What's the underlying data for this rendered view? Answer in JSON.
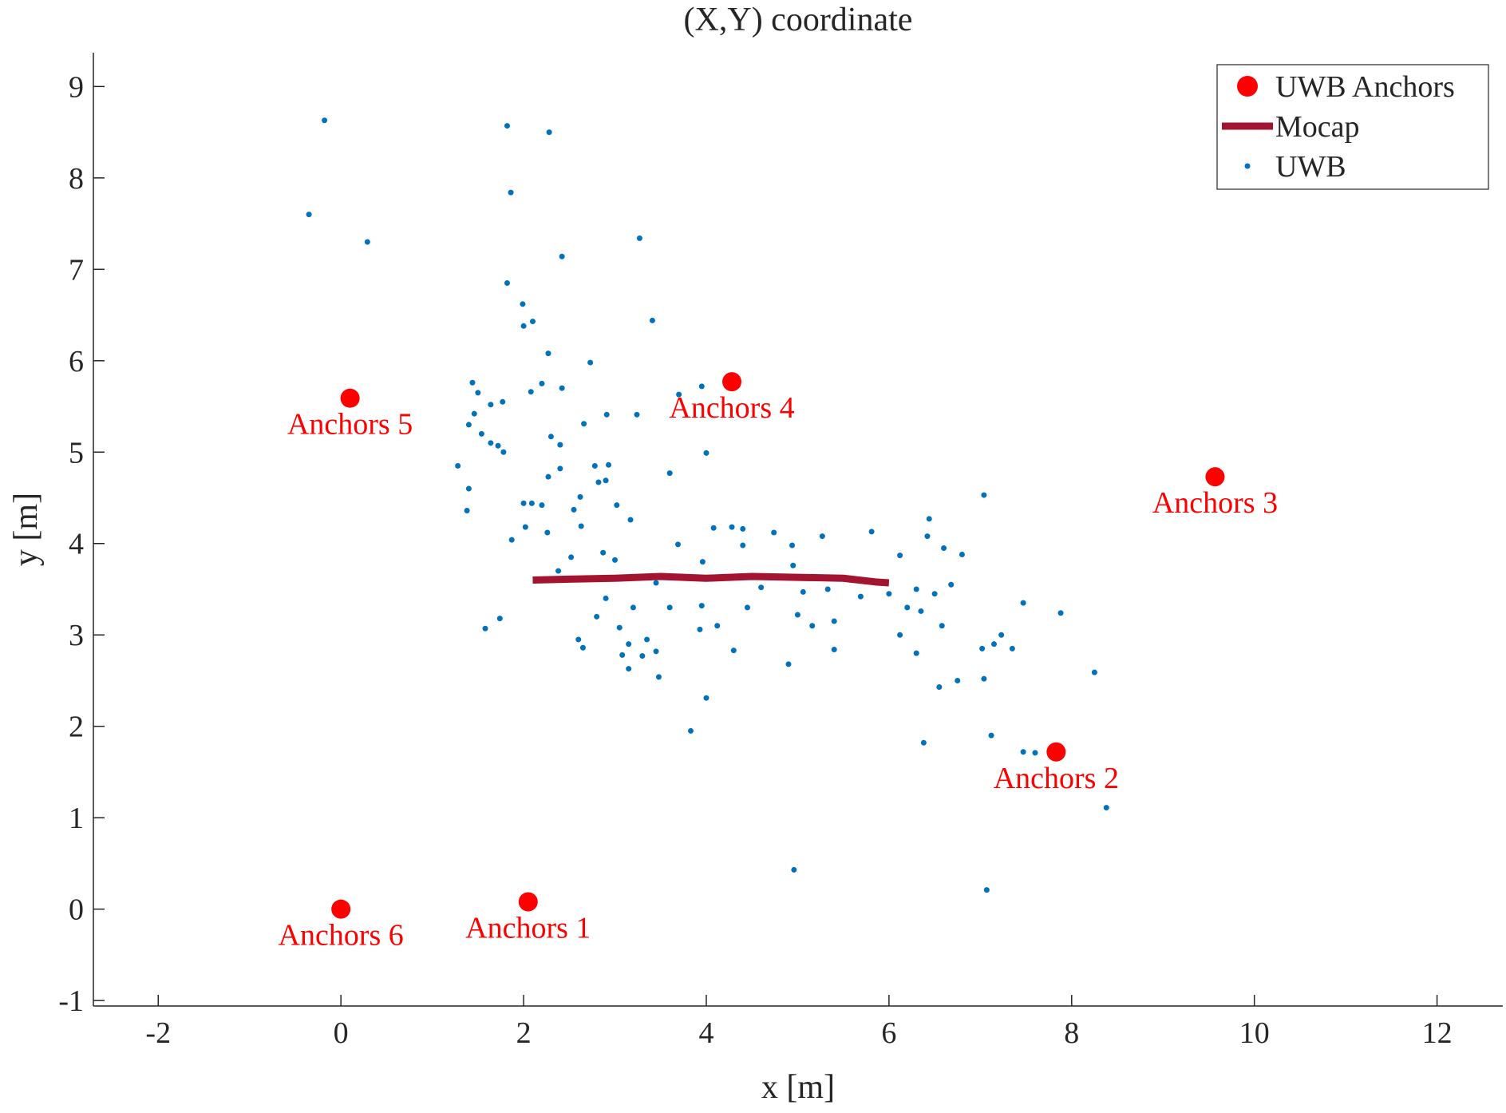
{
  "chart_data": {
    "type": "scatter",
    "title": "(X,Y) coordinate",
    "xlabel": "x [m]",
    "ylabel": "y [m]",
    "xlim": [
      -2.71,
      12.72
    ],
    "ylim": [
      -1.06,
      9.37
    ],
    "xticks": [
      -2,
      0,
      2,
      4,
      6,
      8,
      10,
      12
    ],
    "yticks": [
      -1,
      0,
      1,
      2,
      3,
      4,
      5,
      6,
      7,
      8,
      9
    ],
    "grid": false,
    "legend": "upper right",
    "series": [
      {
        "name": "UWB Anchors",
        "color": "#ff0000",
        "kind": "marker",
        "x": [
          2.05,
          7.83,
          9.57,
          4.28,
          0.1,
          0
        ],
        "values": [
          0.08,
          1.72,
          4.73,
          5.77,
          5.59,
          0
        ],
        "point_labels": [
          "Anchors 1",
          "Anchors 2",
          "Anchors 3",
          "Anchors 4",
          "Anchors 5",
          "Anchors 6"
        ]
      },
      {
        "name": "Mocap",
        "color": "#a2142f",
        "kind": "line",
        "x": [
          2.1,
          2.5,
          3.0,
          3.5,
          4.0,
          4.5,
          5.0,
          5.5,
          5.85,
          6.0
        ],
        "values": [
          3.6,
          3.61,
          3.62,
          3.64,
          3.62,
          3.64,
          3.63,
          3.62,
          3.58,
          3.57
        ]
      },
      {
        "name": "UWB",
        "color": "#0072bd",
        "kind": "dot",
        "x": [
          -0.18,
          -0.35,
          0.29,
          1.82,
          2.28,
          1.86,
          3.27,
          2.42,
          1.82,
          1.99,
          2.1,
          3.41,
          2.0,
          2.27,
          2.73,
          1.44,
          2.2,
          2.42,
          2.08,
          1.5,
          3.95,
          3.7,
          1.64,
          1.77,
          1.46,
          2.91,
          3.24,
          1.4,
          2.66,
          1.54,
          1.64,
          1.72,
          1.78,
          2.3,
          2.4,
          4.0,
          1.28,
          2.4,
          2.78,
          2.93,
          3.6,
          2.82,
          2.9,
          1.4,
          2.27,
          2.62,
          2.0,
          2.09,
          2.2,
          3.02,
          7.04,
          1.38,
          2.55,
          2.26,
          2.02,
          3.17,
          2.63,
          4.08,
          4.28,
          4.4,
          4.74,
          5.27,
          5.81,
          6.44,
          6.42,
          1.87,
          3.69,
          4.4,
          4.94,
          6.6,
          2.87,
          3.0,
          2.52,
          6.8,
          6.12,
          4.95,
          3.96,
          2.38,
          3.45,
          4.6,
          5.06,
          5.33,
          5.69,
          6.0,
          6.3,
          6.5,
          6.68,
          2.9,
          3.2,
          3.6,
          3.95,
          4.45,
          5.0,
          5.4,
          6.2,
          6.35,
          7.47,
          7.88,
          2.8,
          3.05,
          4.12,
          3.93,
          1.58,
          1.74,
          5.16,
          6.12,
          6.58,
          7.23,
          2.6,
          3.15,
          3.35,
          7.15,
          2.65,
          3.45,
          4.3,
          5.4,
          6.3,
          7.02,
          7.35,
          3.08,
          3.3,
          4.9,
          3.15,
          8.25,
          3.48,
          6.55,
          6.75,
          7.04,
          4.0,
          3.83,
          7.12,
          6.38,
          7.47,
          7.6,
          8.38,
          4.96,
          7.07
        ],
        "values": [
          8.63,
          7.6,
          7.3,
          8.57,
          8.5,
          7.84,
          7.34,
          7.14,
          6.85,
          6.62,
          6.43,
          6.44,
          6.38,
          6.08,
          5.98,
          5.76,
          5.75,
          5.7,
          5.66,
          5.65,
          5.72,
          5.63,
          5.52,
          5.55,
          5.42,
          5.41,
          5.41,
          5.3,
          5.31,
          5.2,
          5.1,
          5.07,
          5.0,
          5.17,
          5.08,
          4.99,
          4.85,
          4.82,
          4.85,
          4.86,
          4.77,
          4.67,
          4.69,
          4.6,
          4.73,
          4.51,
          4.44,
          4.44,
          4.42,
          4.42,
          4.53,
          4.36,
          4.37,
          4.12,
          4.18,
          4.26,
          4.19,
          4.17,
          4.18,
          4.16,
          4.12,
          4.08,
          4.13,
          4.27,
          4.08,
          4.04,
          3.99,
          3.98,
          3.98,
          3.95,
          3.9,
          3.82,
          3.85,
          3.88,
          3.87,
          3.76,
          3.8,
          3.7,
          3.57,
          3.52,
          3.47,
          3.5,
          3.42,
          3.45,
          3.5,
          3.45,
          3.55,
          3.4,
          3.3,
          3.3,
          3.32,
          3.3,
          3.22,
          3.15,
          3.3,
          3.26,
          3.35,
          3.24,
          3.2,
          3.08,
          3.1,
          3.06,
          3.07,
          3.18,
          3.1,
          3.0,
          3.1,
          3.0,
          2.95,
          2.9,
          2.95,
          2.9,
          2.86,
          2.82,
          2.83,
          2.84,
          2.8,
          2.85,
          2.85,
          2.78,
          2.77,
          2.68,
          2.63,
          2.59,
          2.54,
          2.43,
          2.5,
          2.52,
          2.31,
          1.95,
          1.9,
          1.82,
          1.72,
          1.71,
          1.11,
          0.43,
          0.21
        ]
      }
    ]
  }
}
